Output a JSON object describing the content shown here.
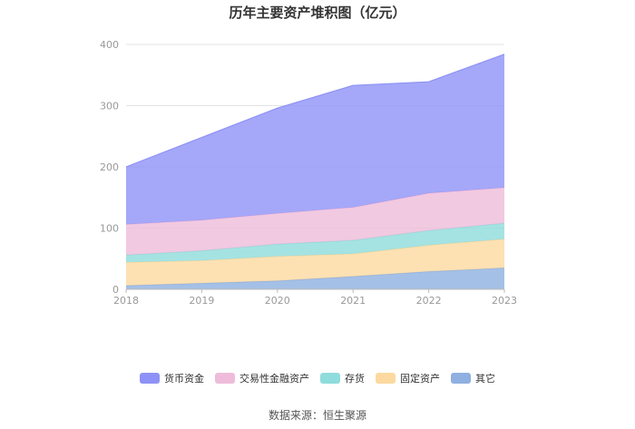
{
  "chart_data": {
    "type": "area",
    "title": "历年主要资产堆积图（亿元）",
    "x": [
      "2018",
      "2019",
      "2020",
      "2021",
      "2022",
      "2023"
    ],
    "ylim": [
      0,
      400
    ],
    "yticks": [
      0,
      100,
      200,
      300,
      400
    ],
    "stacked": true,
    "grid": true,
    "legend_position": "bottom",
    "series": [
      {
        "name": "其它",
        "color": "#8fb0e0",
        "values": [
          6,
          10,
          14,
          21,
          29,
          35
        ]
      },
      {
        "name": "固定资产",
        "color": "#fcd9a0",
        "values": [
          38,
          37,
          40,
          37,
          43,
          47
        ]
      },
      {
        "name": "存货",
        "color": "#8fdcdc",
        "values": [
          12,
          16,
          20,
          22,
          24,
          26
        ]
      },
      {
        "name": "交易性金融资产",
        "color": "#eebcda",
        "values": [
          50,
          50,
          50,
          54,
          61,
          58
        ]
      },
      {
        "name": "货币资金",
        "color": "#8e92f6",
        "values": [
          94,
          135,
          172,
          199,
          182,
          218
        ]
      }
    ]
  },
  "legend_order": [
    "货币资金",
    "交易性金融资产",
    "存货",
    "固定资产",
    "其它"
  ],
  "source_note": "数据来源：恒生聚源"
}
